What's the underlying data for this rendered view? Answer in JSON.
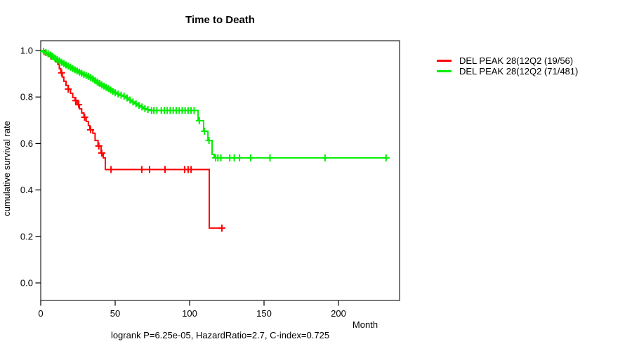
{
  "chart_data": {
    "type": "line",
    "subtype": "kaplan-meier-step-survival",
    "title": "Time to Death",
    "xlabel": "Month",
    "ylabel": "cumulative survival rate",
    "annotation": "logrank P=6.25e-05, HazardRatio=2.7, C-index=0.725",
    "xlim": [
      0,
      240
    ],
    "ylim": [
      0.0,
      1.0
    ],
    "grid": false,
    "legend_position": "right-outside",
    "x_ticks": {
      "values": [
        0,
        50,
        100,
        150,
        200
      ],
      "labels": [
        "0",
        "50",
        "100",
        "150",
        "200"
      ]
    },
    "y_ticks": {
      "values": [
        0.0,
        0.2,
        0.4,
        0.6,
        0.8,
        1.0
      ],
      "labels": [
        "0.0",
        "0.2",
        "0.4",
        "0.6",
        "0.8",
        "1.0"
      ]
    },
    "series": [
      {
        "name": "DEL PEAK 28(12Q2 (19/56)",
        "color": "#ff0000",
        "steps": [
          [
            0,
            1.0
          ],
          [
            3,
            0.982
          ],
          [
            6,
            0.976
          ],
          [
            8,
            0.964
          ],
          [
            10,
            0.952
          ],
          [
            11.5,
            0.94
          ],
          [
            12.5,
            0.922
          ],
          [
            13.5,
            0.904
          ],
          [
            14.5,
            0.886
          ],
          [
            15.5,
            0.868
          ],
          [
            17,
            0.85
          ],
          [
            18.5,
            0.834
          ],
          [
            20,
            0.816
          ],
          [
            21.5,
            0.798
          ],
          [
            23,
            0.785
          ],
          [
            24.5,
            0.767
          ],
          [
            26,
            0.749
          ],
          [
            27.5,
            0.731
          ],
          [
            29,
            0.713
          ],
          [
            30.5,
            0.695
          ],
          [
            32,
            0.677
          ],
          [
            33,
            0.659
          ],
          [
            35,
            0.644
          ],
          [
            36.5,
            0.613
          ],
          [
            38.5,
            0.589
          ],
          [
            40.5,
            0.559
          ],
          [
            42,
            0.538
          ],
          [
            43.4,
            0.488
          ],
          [
            113.2,
            0.236
          ],
          [
            122.6,
            0.236
          ]
        ],
        "censor_months": [
          7,
          14,
          18.5,
          23.5,
          25.5,
          29.5,
          33.5,
          39,
          41,
          47.2,
          67.9,
          73.1,
          83.5,
          96.7,
          99,
          101,
          121.7
        ]
      },
      {
        "name": "DEL PEAK 28(12Q2 (71/481)",
        "color": "#00ee00",
        "steps": [
          [
            0,
            1.0
          ],
          [
            1.5,
            0.996
          ],
          [
            3,
            0.991
          ],
          [
            4.5,
            0.986
          ],
          [
            6,
            0.981
          ],
          [
            7.5,
            0.975
          ],
          [
            9,
            0.968
          ],
          [
            10.5,
            0.962
          ],
          [
            12,
            0.956
          ],
          [
            13.5,
            0.95
          ],
          [
            15,
            0.944
          ],
          [
            16.5,
            0.938
          ],
          [
            18,
            0.933
          ],
          [
            19.5,
            0.928
          ],
          [
            21,
            0.922
          ],
          [
            22.5,
            0.917
          ],
          [
            24,
            0.912
          ],
          [
            25.5,
            0.907
          ],
          [
            27,
            0.902
          ],
          [
            28.5,
            0.897
          ],
          [
            30,
            0.893
          ],
          [
            31.5,
            0.889
          ],
          [
            33,
            0.884
          ],
          [
            34.5,
            0.878
          ],
          [
            36,
            0.871
          ],
          [
            37.5,
            0.864
          ],
          [
            39,
            0.858
          ],
          [
            40.5,
            0.852
          ],
          [
            42,
            0.847
          ],
          [
            43.5,
            0.841
          ],
          [
            45,
            0.836
          ],
          [
            46.5,
            0.83
          ],
          [
            48,
            0.824
          ],
          [
            49.5,
            0.818
          ],
          [
            51,
            0.813
          ],
          [
            53,
            0.808
          ],
          [
            55,
            0.804
          ],
          [
            57,
            0.796
          ],
          [
            59,
            0.787
          ],
          [
            61,
            0.779
          ],
          [
            63,
            0.771
          ],
          [
            65,
            0.764
          ],
          [
            67,
            0.757
          ],
          [
            69,
            0.75
          ],
          [
            71,
            0.746
          ],
          [
            74,
            0.742
          ],
          [
            105.7,
            0.698
          ],
          [
            109.4,
            0.653
          ],
          [
            112.3,
            0.613
          ],
          [
            115.1,
            0.553
          ],
          [
            116.5,
            0.538
          ],
          [
            232,
            0.538
          ]
        ],
        "censor_months": [
          2,
          3.5,
          5,
          6.5,
          8,
          9.5,
          11,
          12.5,
          14,
          15.5,
          17,
          18.5,
          20,
          21.5,
          23,
          24.5,
          26,
          27.5,
          29,
          30.5,
          32,
          33.5,
          35,
          36.5,
          38,
          39.5,
          41,
          42.5,
          44,
          45.5,
          47,
          48.5,
          50,
          52,
          54,
          56,
          58,
          60,
          62,
          64,
          66,
          68,
          70,
          72,
          74.5,
          76,
          78,
          81,
          83,
          85,
          87,
          89,
          91,
          93,
          95,
          97,
          99,
          101,
          103,
          106.5,
          110,
          113,
          117.5,
          119,
          121,
          127,
          130,
          133.5,
          141,
          154,
          191,
          232
        ]
      }
    ]
  }
}
